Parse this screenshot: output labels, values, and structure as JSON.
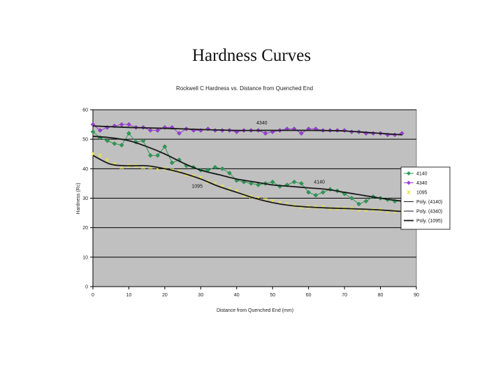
{
  "slide": {
    "title": "Hardness Curves"
  },
  "chart_data": {
    "type": "scatter",
    "title": "Rockwell C Hardness vs. Distance from Quenched End",
    "xlabel": "Distance from Quenched End (mm)",
    "ylabel": "Hardness (Rc)",
    "xlim": [
      0,
      90
    ],
    "ylim": [
      0,
      60
    ],
    "xticks": [
      0,
      10,
      20,
      30,
      40,
      50,
      60,
      70,
      80,
      90
    ],
    "yticks": [
      0,
      10,
      20,
      30,
      40,
      50,
      60
    ],
    "grid": "horizontal",
    "legend_position": "right",
    "annotations": [
      {
        "text": "4340",
        "x": 47,
        "y": 55
      },
      {
        "text": "4140",
        "x": 63,
        "y": 35
      },
      {
        "text": "1095",
        "x": 29,
        "y": 33.5
      }
    ],
    "series": [
      {
        "name": "4140",
        "kind": "markers+line",
        "color": "#2e9a55",
        "x": [
          0,
          2,
          4,
          6,
          8,
          10,
          12,
          14,
          16,
          18,
          20,
          22,
          24,
          26,
          28,
          30,
          32,
          34,
          36,
          38,
          40,
          42,
          44,
          46,
          48,
          50,
          52,
          54,
          56,
          58,
          60,
          62,
          64,
          66,
          68,
          70,
          72,
          74,
          76,
          78,
          80,
          82,
          84,
          86
        ],
        "y": [
          52.5,
          50.5,
          49.5,
          48.5,
          48,
          52,
          49,
          49.5,
          44.5,
          44.5,
          47.5,
          42,
          43,
          41,
          40.5,
          39.5,
          39.5,
          40.5,
          40,
          38.5,
          36,
          35.5,
          35,
          34.5,
          35,
          35.5,
          34,
          34.5,
          35.5,
          35,
          32,
          31,
          32,
          33,
          32.5,
          31.5,
          30,
          28,
          29,
          30.5,
          30,
          29.5,
          29,
          29
        ]
      },
      {
        "name": "4340",
        "kind": "markers+line",
        "color": "#9a3fd6",
        "x": [
          0,
          2,
          4,
          6,
          8,
          10,
          12,
          14,
          16,
          18,
          20,
          22,
          24,
          26,
          28,
          30,
          32,
          34,
          36,
          38,
          40,
          42,
          44,
          46,
          48,
          50,
          52,
          54,
          56,
          58,
          60,
          62,
          64,
          66,
          68,
          70,
          72,
          74,
          76,
          78,
          80,
          82,
          84,
          86
        ],
        "y": [
          55,
          53,
          54,
          54.5,
          55,
          55,
          54,
          54,
          53,
          53,
          54,
          54,
          52,
          53.5,
          53,
          53,
          53.5,
          53,
          53,
          53,
          52.5,
          53,
          53,
          53,
          52,
          52.5,
          53,
          53.5,
          53.5,
          52,
          53.5,
          53.5,
          53,
          53,
          53,
          53,
          52.5,
          52.5,
          52,
          52,
          52,
          51.5,
          51.5,
          52
        ]
      },
      {
        "name": "1095",
        "kind": "markers",
        "color": "#e8e24a",
        "x": [
          0,
          2,
          4,
          6,
          8,
          10,
          12,
          14,
          16,
          18,
          20,
          22,
          24,
          26,
          28,
          30,
          32,
          34,
          36,
          38,
          40,
          42,
          44,
          46,
          48,
          50,
          52,
          54,
          56,
          58,
          60,
          62,
          64,
          66,
          68,
          70,
          72,
          74,
          76,
          78,
          80,
          82,
          84,
          86
        ],
        "y": [
          45,
          44.5,
          43,
          41.5,
          40.5,
          41,
          41,
          40.5,
          40.5,
          40,
          40,
          39.5,
          39,
          38,
          37.5,
          37,
          35.5,
          35,
          34,
          33,
          32.5,
          31,
          30.5,
          30,
          29.5,
          29,
          28.5,
          28,
          27.5,
          27,
          27,
          27,
          27,
          26.5,
          26.5,
          26.5,
          26.5,
          26,
          26,
          26,
          26,
          25.5,
          25.5,
          25.5
        ]
      },
      {
        "name": "Poly. (4140)",
        "kind": "trend",
        "color": "#1a1a1a",
        "x": [
          0,
          5,
          10,
          15,
          20,
          25,
          30,
          35,
          40,
          45,
          50,
          55,
          60,
          65,
          70,
          75,
          80,
          86
        ],
        "y": [
          51,
          50.5,
          49.5,
          47.5,
          45,
          42,
          39.5,
          38,
          36.5,
          35.5,
          34.5,
          34,
          33.5,
          33,
          32,
          31,
          30,
          29
        ]
      },
      {
        "name": "Poly. (4340)",
        "kind": "trend",
        "color": "#1a1a1a",
        "x": [
          0,
          10,
          20,
          30,
          40,
          50,
          60,
          70,
          80,
          86
        ],
        "y": [
          54.5,
          54,
          53.7,
          53.3,
          53,
          53,
          53,
          52.8,
          52,
          51.5
        ]
      },
      {
        "name": "Poly. (1095)",
        "kind": "trend",
        "color": "#1a1a1a",
        "x": [
          0,
          5,
          10,
          15,
          20,
          25,
          30,
          35,
          40,
          45,
          50,
          55,
          60,
          65,
          70,
          75,
          80,
          86
        ],
        "y": [
          44.5,
          41.5,
          41,
          41,
          40,
          38.5,
          36.5,
          34,
          32,
          30,
          28.5,
          27.5,
          27,
          26.7,
          26.5,
          26.3,
          26,
          25.5
        ]
      }
    ]
  }
}
